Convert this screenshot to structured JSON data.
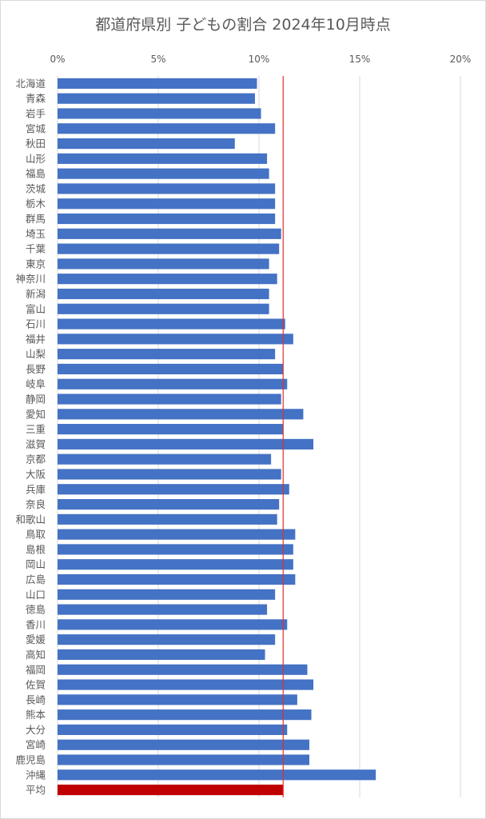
{
  "chart_data": {
    "type": "bar",
    "orientation": "horizontal",
    "title": "都道府県別 子どもの割合 2024年10月時点",
    "xlim": [
      0,
      20
    ],
    "xticks": [
      "0%",
      "5%",
      "10%",
      "15%",
      "20%"
    ],
    "xtick_values": [
      0,
      5,
      10,
      15,
      20
    ],
    "x_axis_position": "top",
    "grid": true,
    "legend": "none",
    "reference_line": 11.2,
    "categories": [
      "北海道",
      "青森",
      "岩手",
      "宮城",
      "秋田",
      "山形",
      "福島",
      "茨城",
      "栃木",
      "群馬",
      "埼玉",
      "千葉",
      "東京",
      "神奈川",
      "新潟",
      "富山",
      "石川",
      "福井",
      "山梨",
      "長野",
      "岐阜",
      "静岡",
      "愛知",
      "三重",
      "滋賀",
      "京都",
      "大阪",
      "兵庫",
      "奈良",
      "和歌山",
      "鳥取",
      "島根",
      "岡山",
      "広島",
      "山口",
      "徳島",
      "香川",
      "愛媛",
      "高知",
      "福岡",
      "佐賀",
      "長崎",
      "熊本",
      "大分",
      "宮崎",
      "鹿児島",
      "沖縄",
      "平均"
    ],
    "values": [
      9.9,
      9.8,
      10.1,
      10.8,
      8.8,
      10.4,
      10.5,
      10.8,
      10.8,
      10.8,
      11.1,
      11.0,
      10.5,
      10.9,
      10.5,
      10.5,
      11.3,
      11.7,
      10.8,
      11.2,
      11.4,
      11.1,
      12.2,
      11.2,
      12.7,
      10.6,
      11.1,
      11.5,
      11.0,
      10.9,
      11.8,
      11.7,
      11.7,
      11.8,
      10.8,
      10.4,
      11.4,
      10.8,
      10.3,
      12.4,
      12.7,
      11.9,
      12.6,
      11.4,
      12.5,
      12.5,
      15.8,
      11.2
    ],
    "colors": {
      "bar": "#4472C4",
      "average_bar": "#C00000",
      "reference_line": "#E03030",
      "grid": "#D9D9D9",
      "text": "#595959"
    }
  }
}
